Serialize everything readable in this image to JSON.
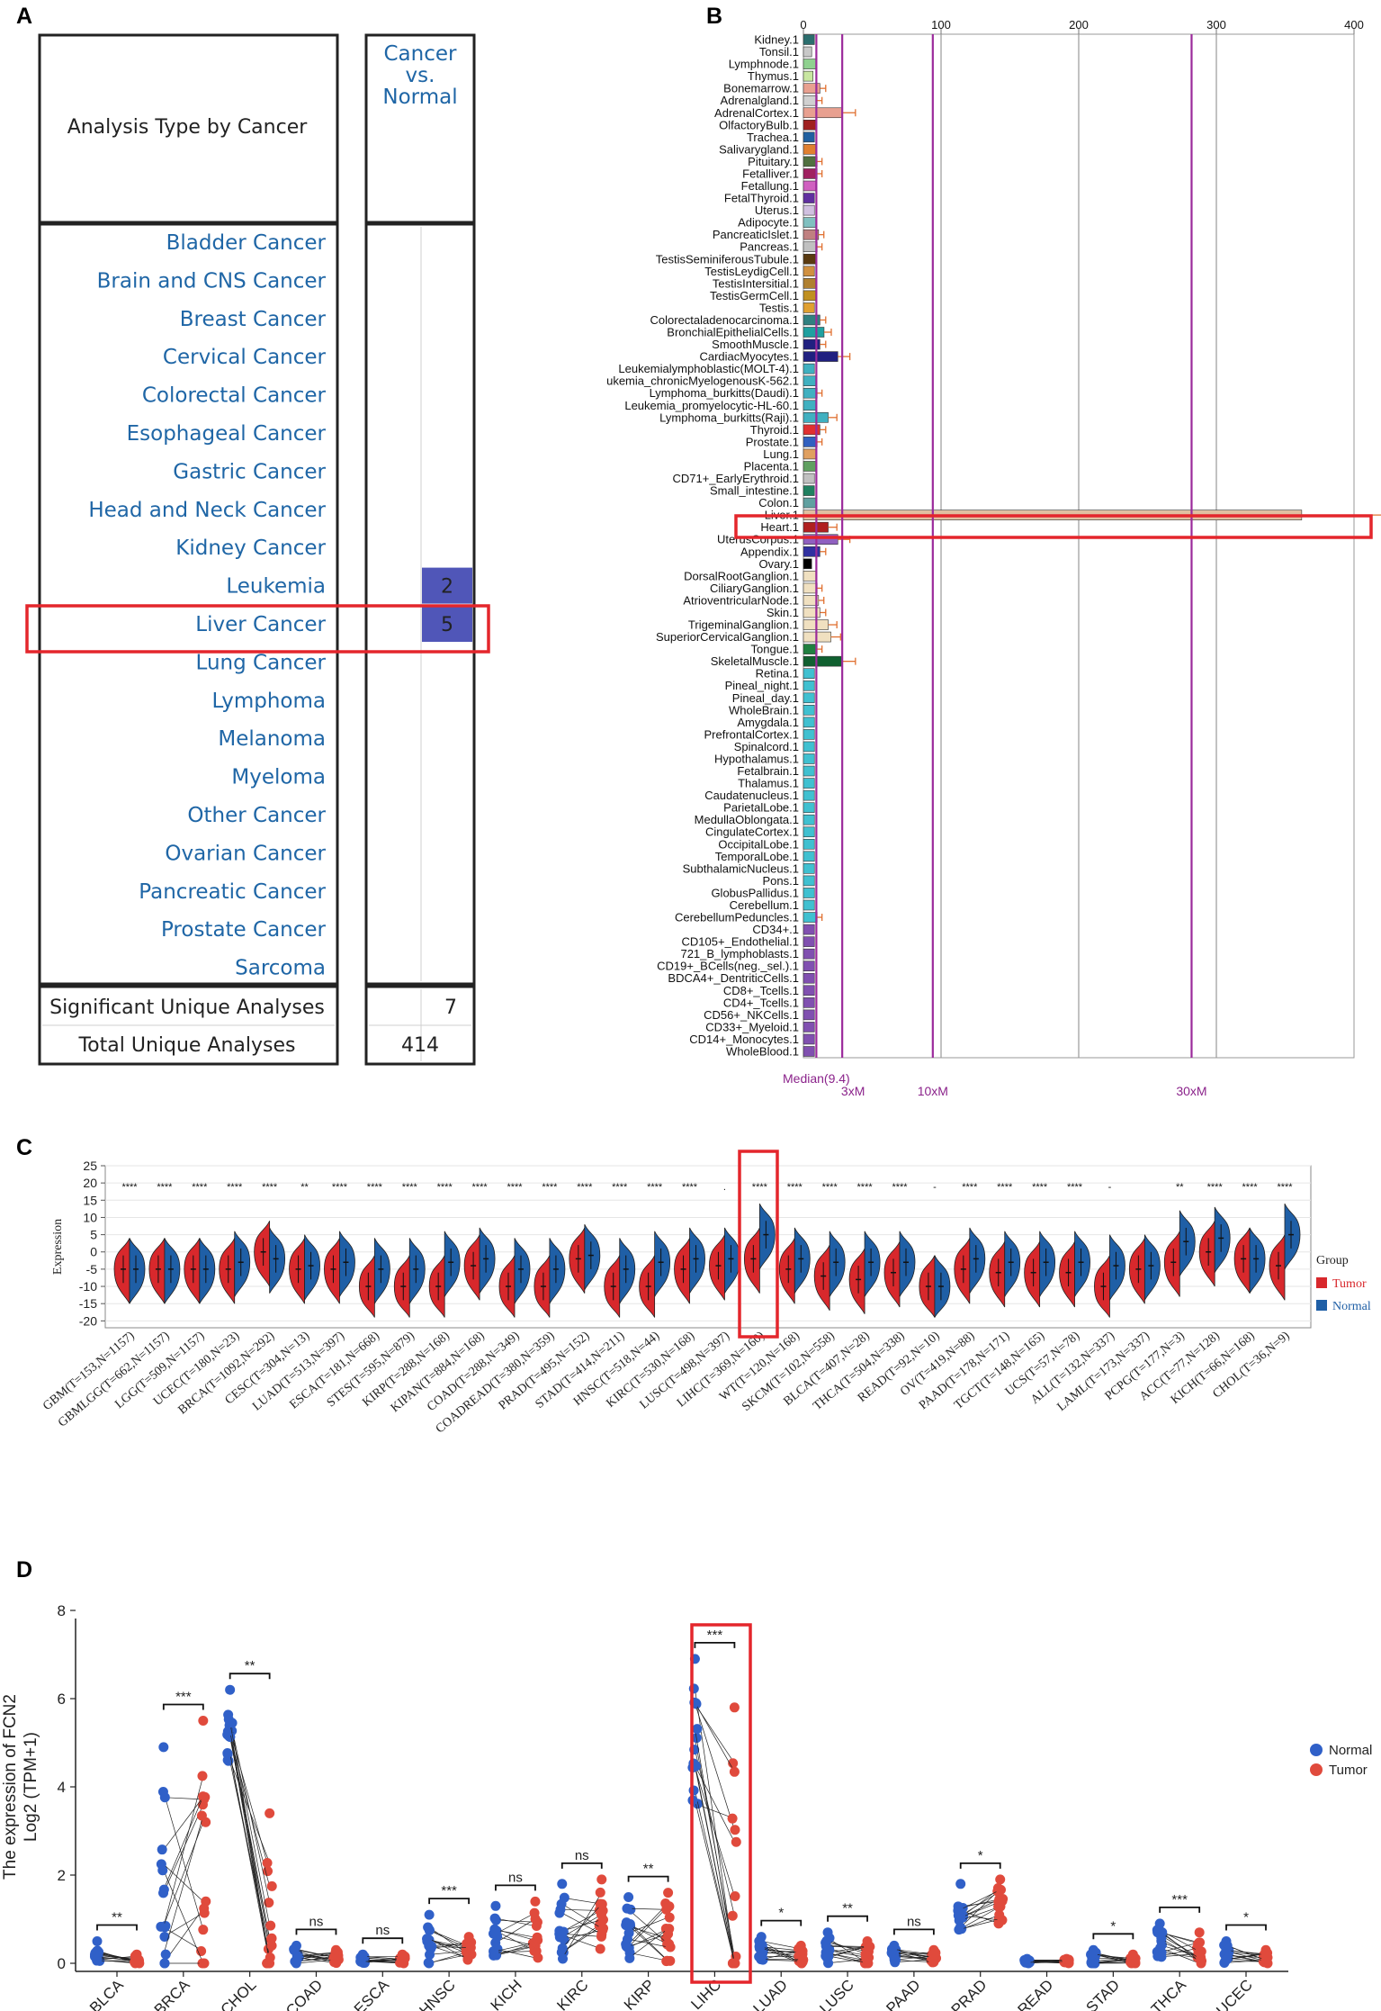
{
  "panels": {
    "a": "A",
    "b": "B",
    "c": "C",
    "d": "D"
  },
  "colors": {
    "link_blue": "#1f66a6",
    "heat_blue": "#5056b8",
    "highlight_red": "#e4262c",
    "tumor_red": "#d8282c",
    "normal_blue": "#1f5fa6",
    "magenta": "#9b2a9b",
    "d_normal": "#3060c8",
    "d_tumor": "#e04a3c"
  },
  "chart_data": [
    {
      "type": "table",
      "header_left": "Analysis Type by Cancer",
      "header_right": [
        "Cancer",
        "vs.",
        "Normal"
      ],
      "rows": [
        {
          "label": "Bladder Cancer",
          "value": ""
        },
        {
          "label": "Brain and CNS Cancer",
          "value": ""
        },
        {
          "label": "Breast Cancer",
          "value": ""
        },
        {
          "label": "Cervical Cancer",
          "value": ""
        },
        {
          "label": "Colorectal Cancer",
          "value": ""
        },
        {
          "label": "Esophageal Cancer",
          "value": ""
        },
        {
          "label": "Gastric Cancer",
          "value": ""
        },
        {
          "label": "Head and Neck Cancer",
          "value": ""
        },
        {
          "label": "Kidney Cancer",
          "value": ""
        },
        {
          "label": "Leukemia",
          "value": "2"
        },
        {
          "label": "Liver Cancer",
          "value": "5"
        },
        {
          "label": "Lung Cancer",
          "value": ""
        },
        {
          "label": "Lymphoma",
          "value": ""
        },
        {
          "label": "Melanoma",
          "value": ""
        },
        {
          "label": "Myeloma",
          "value": ""
        },
        {
          "label": "Other Cancer",
          "value": ""
        },
        {
          "label": "Ovarian Cancer",
          "value": ""
        },
        {
          "label": "Pancreatic Cancer",
          "value": ""
        },
        {
          "label": "Prostate Cancer",
          "value": ""
        },
        {
          "label": "Sarcoma",
          "value": ""
        }
      ],
      "footer": [
        {
          "label": "Significant Unique Analyses",
          "value": "7"
        },
        {
          "label": "Total Unique Analyses",
          "value": "414"
        }
      ],
      "highlighted_row": "Liver Cancer"
    },
    {
      "type": "bar",
      "orientation": "horizontal",
      "xlim": [
        0,
        400
      ],
      "xticks": [
        "0",
        "100",
        "200",
        "300",
        "400"
      ],
      "categories": [
        "Kidney.1",
        "Tonsil.1",
        "Lymphnode.1",
        "Thymus.1",
        "Bonemarrow.1",
        "Adrenalgland.1",
        "AdrenalCortex.1",
        "OlfactoryBulb.1",
        "Trachea.1",
        "Salivarygland.1",
        "Pituitary.1",
        "Fetalliver.1",
        "Fetallung.1",
        "FetalThyroid.1",
        "Uterus.1",
        "Adipocyte.1",
        "PancreaticIslet.1",
        "Pancreas.1",
        "TestisSeminiferousTubule.1",
        "TestisLeydigCell.1",
        "TestisIntersitial.1",
        "TestisGermCell.1",
        "Testis.1",
        "Colorectaladenocarcinoma.1",
        "BronchialEpithelialCells.1",
        "SmoothMuscle.1",
        "CardiacMyocytes.1",
        "Leukemialymphoblastic(MOLT-4).1",
        "ukemia_chronicMyelogenousK-562.1",
        "Lymphoma_burkitts(Daudi).1",
        "Leukemia_promyelocytic-HL-60.1",
        "Lymphoma_burkitts(Raji).1",
        "Thyroid.1",
        "Prostate.1",
        "Lung.1",
        "Placenta.1",
        "CD71+_EarlyErythroid.1",
        "Small_intestine.1",
        "Colon.1",
        "Liver.1",
        "Heart.1",
        "UterusCorpus.1",
        "Appendix.1",
        "Ovary.1",
        "DorsalRootGanglion.1",
        "CiliaryGanglion.1",
        "AtrioventricularNode.1",
        "Skin.1",
        "TrigeminalGanglion.1",
        "SuperiorCervicalGanglion.1",
        "Tongue.1",
        "SkeletalMuscle.1",
        "Retina.1",
        "Pineal_night.1",
        "Pineal_day.1",
        "WholeBrain.1",
        "Amygdala.1",
        "PrefrontalCortex.1",
        "Spinalcord.1",
        "Hypothalamus.1",
        "Fetalbrain.1",
        "Thalamus.1",
        "Caudatenucleus.1",
        "ParietalLobe.1",
        "MedullaOblongata.1",
        "CingulateCortex.1",
        "OccipitalLobe.1",
        "TemporalLobe.1",
        "SubthalamicNucleus.1",
        "Pons.1",
        "GlobusPallidus.1",
        "Cerebellum.1",
        "CerebellumPeduncles.1",
        "CD34+.1",
        "CD105+_Endothelial.1",
        "721_B_lymphoblasts.1",
        "CD19+_BCells(neg._sel.).1",
        "BDCA4+_DentriticCells.1",
        "CD8+_Tcells.1",
        "CD4+_Tcells.1",
        "CD56+_NKCells.1",
        "CD33+_Myeloid.1",
        "CD14+_Monocytes.1",
        "WholeBlood.1"
      ],
      "values": [
        8,
        6,
        9,
        7,
        12,
        10,
        28,
        9,
        8,
        9,
        10,
        10,
        9,
        8,
        8,
        9,
        11,
        10,
        9,
        8,
        9,
        9,
        8,
        12,
        15,
        12,
        25,
        8,
        9,
        10,
        9,
        18,
        12,
        10,
        9,
        9,
        8,
        8,
        9,
        362,
        18,
        25,
        12,
        6,
        9,
        10,
        11,
        12,
        18,
        20,
        10,
        28,
        8,
        8,
        8,
        8,
        8,
        8,
        8,
        8,
        8,
        8,
        8,
        8,
        8,
        8,
        8,
        8,
        8,
        8,
        8,
        8,
        10,
        8,
        8,
        8,
        8,
        8,
        8,
        8,
        8,
        8,
        8,
        8
      ],
      "colors": [
        "#2b6e6e",
        "#c8c8c8",
        "#8fd18f",
        "#c8e6a0",
        "#e8a090",
        "#d0d0d0",
        "#e8a090",
        "#a02020",
        "#2060a0",
        "#e08030",
        "#507040",
        "#a02060",
        "#d060c0",
        "#6030a0",
        "#d0c0e0",
        "#80c0c0",
        "#c08080",
        "#c0c0c0",
        "#5a3a10",
        "#d09040",
        "#b08030",
        "#c09020",
        "#e0a030",
        "#308080",
        "#20a0a0",
        "#202080",
        "#202080",
        "#40b0c0",
        "#40b0c0",
        "#40b0c0",
        "#40b0c0",
        "#40b0c0",
        "#e03030",
        "#3060c0",
        "#e0a060",
        "#60a060",
        "#c0c0c0",
        "#208060",
        "#60a0a0",
        "#e0c0a0",
        "#b02020",
        "#9060c0",
        "#3030a0",
        "#000000",
        "#f0e0c0",
        "#f0e0c0",
        "#f0e0c0",
        "#f0e0c0",
        "#f0e0c0",
        "#f0e0c0",
        "#208040",
        "#106030",
        "#40c0d0",
        "#40c0d0",
        "#40c0d0",
        "#40c0d0",
        "#40c0d0",
        "#40c0d0",
        "#40c0d0",
        "#40c0d0",
        "#40c0d0",
        "#40c0d0",
        "#40c0d0",
        "#40c0d0",
        "#40c0d0",
        "#40c0d0",
        "#40c0d0",
        "#40c0d0",
        "#40c0d0",
        "#40c0d0",
        "#40c0d0",
        "#40c0d0",
        "#40c0d0",
        "#8050b0",
        "#8050b0",
        "#8050b0",
        "#8050b0",
        "#8050b0",
        "#8050b0",
        "#8050b0",
        "#8050b0",
        "#8050b0",
        "#8050b0",
        "#8050b0"
      ],
      "reference_lines": [
        {
          "label": "Median(9.4)",
          "value": 9.4
        },
        {
          "label": "3xM",
          "value": 28.2
        },
        {
          "label": "10xM",
          "value": 94
        },
        {
          "label": "30xM",
          "value": 282
        }
      ],
      "highlighted_category": "Heart.1"
    },
    {
      "type": "violin",
      "ylabel": "Expression",
      "ylim": [
        -22,
        25
      ],
      "yticks": [
        -20,
        -15,
        -10,
        -5,
        0,
        5,
        10,
        15,
        20,
        25
      ],
      "legend_title": "Group",
      "series": [
        {
          "name": "Tumor",
          "color": "#d8282c"
        },
        {
          "name": "Normal",
          "color": "#1f5fa6"
        }
      ],
      "categories": [
        "GBM(T=153,N=1157)",
        "GBMLGG(T=662,N=1157)",
        "LGG(T=509,N=1157)",
        "UCEC(T=180,N=23)",
        "BRCA(T=1092,N=292)",
        "CESC(T=304,N=13)",
        "LUAD(T=513,N=397)",
        "ESCA(T=181,N=668)",
        "STES(T=595,N=879)",
        "KIRP(T=288,N=168)",
        "KIPAN(T=884,N=168)",
        "COAD(T=288,N=349)",
        "COADREAD(T=380,N=359)",
        "PRAD(T=495,N=152)",
        "STAD(T=414,N=211)",
        "HNSC(T=518,N=44)",
        "KIRC(T=530,N=168)",
        "LUSC(T=498,N=397)",
        "LIHC(T=369,N=160)",
        "WT(T=120,N=168)",
        "SKCM(T=102,N=558)",
        "BLCA(T=407,N=28)",
        "THCA(T=504,N=338)",
        "READ(T=92,N=10)",
        "OV(T=419,N=88)",
        "PAAD(T=178,N=171)",
        "TGCT(T=148,N=165)",
        "UCS(T=57,N=78)",
        "ALL(T=132,N=337)",
        "LAML(T=173,N=337)",
        "PCPG(T=177,N=3)",
        "ACC(T=77,N=128)",
        "KICH(T=66,N=168)",
        "CHOL(T=36,N=9)"
      ],
      "tumor_median": [
        -5,
        -5,
        -5,
        -5,
        0,
        -5,
        -5,
        -10,
        -10,
        -10,
        -4,
        -10,
        -10,
        -2,
        -10,
        -10,
        -5,
        -4,
        -2,
        -5,
        -7,
        -8,
        -6,
        -10,
        -5,
        -6,
        -6,
        -6,
        -10,
        -5,
        -3,
        0,
        -2,
        -4
      ],
      "normal_median": [
        -5,
        -5,
        -5,
        -3,
        -2,
        -4,
        -3,
        -5,
        -5,
        -3,
        -2,
        -5,
        -5,
        -1,
        -5,
        -3,
        -2,
        -2,
        5,
        -2,
        -3,
        -3,
        -3,
        -10,
        -2,
        -3,
        -3,
        -3,
        -4,
        -4,
        3,
        4,
        -2,
        5
      ],
      "significance": [
        "****",
        "****",
        "****",
        "****",
        "****",
        "**",
        "****",
        "****",
        "****",
        "****",
        "****",
        "****",
        "****",
        "****",
        "****",
        "****",
        "****",
        ".",
        "****",
        "****",
        "****",
        "****",
        "****",
        "-",
        "****",
        "****",
        "****",
        "****",
        "-",
        "",
        "**",
        "****",
        "****",
        "****"
      ],
      "highlighted_category": "LIHC(T=369,N=160)"
    },
    {
      "type": "scatter",
      "ylabel_line1": "The expression of FCN2",
      "ylabel_line2": "Log2 (TPM+1)",
      "ylim": [
        0,
        8
      ],
      "yticks": [
        0,
        2,
        4,
        6,
        8
      ],
      "series": [
        {
          "name": "Normal",
          "color": "#3060c8"
        },
        {
          "name": "Tumor",
          "color": "#e04a3c"
        }
      ],
      "categories": [
        "BLCA",
        "BRCA",
        "CHOL",
        "COAD",
        "ESCA",
        "HNSC",
        "KICH",
        "KIRC",
        "KIRP",
        "LIHC",
        "LUAD",
        "LUSC",
        "PAAD",
        "PRAD",
        "READ",
        "STAD",
        "THCA",
        "UCEC"
      ],
      "normal_max": [
        0.5,
        4.9,
        6.2,
        0.4,
        0.2,
        1.1,
        1.3,
        1.8,
        1.5,
        6.9,
        0.6,
        0.7,
        0.4,
        1.8,
        0.1,
        0.3,
        0.9,
        0.5
      ],
      "tumor_max": [
        0.2,
        5.5,
        3.4,
        0.3,
        0.2,
        0.6,
        1.4,
        1.9,
        1.6,
        5.8,
        0.4,
        0.5,
        0.3,
        1.9,
        0.1,
        0.2,
        0.7,
        0.3
      ],
      "normal_center": [
        0.15,
        1.2,
        5.0,
        0.1,
        0.05,
        0.3,
        0.5,
        0.6,
        0.5,
        4.5,
        0.2,
        0.2,
        0.1,
        0.9,
        0.03,
        0.05,
        0.3,
        0.15
      ],
      "tumor_center": [
        0.05,
        0.9,
        0.3,
        0.08,
        0.04,
        0.2,
        0.5,
        0.7,
        0.5,
        0.5,
        0.1,
        0.1,
        0.1,
        1.1,
        0.03,
        0.03,
        0.2,
        0.08
      ],
      "significance": [
        "**",
        "***",
        "**",
        "ns",
        "ns",
        "***",
        "ns",
        "ns",
        "**",
        "***",
        "*",
        "**",
        "ns",
        "*",
        "",
        "*",
        "***",
        "*"
      ],
      "highlighted_category": "LIHC"
    }
  ]
}
